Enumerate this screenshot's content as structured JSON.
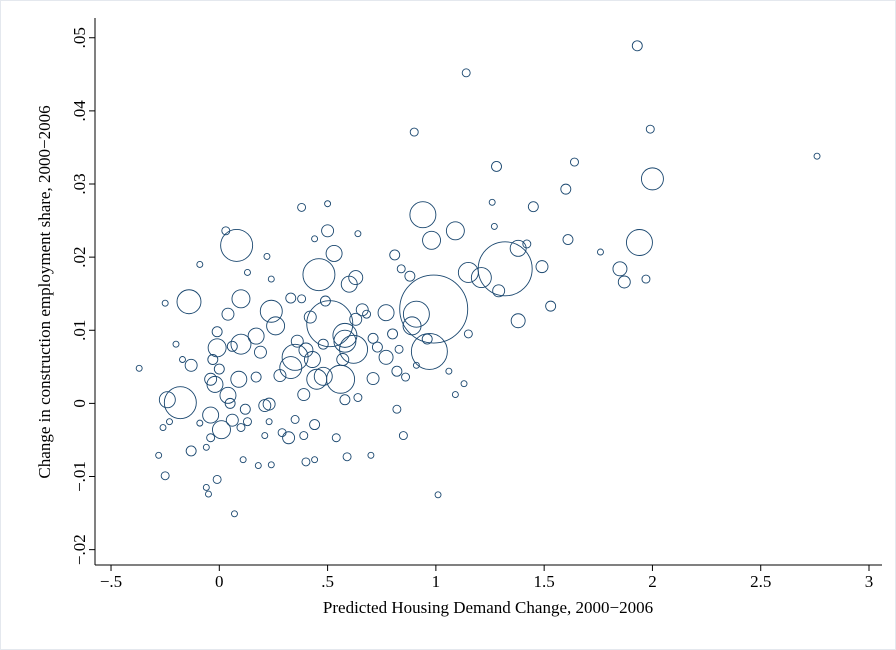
{
  "chart_data": {
    "type": "scatter",
    "x_label": "Predicted Housing Demand Change, 2000−2006",
    "y_label": "Change in construction employment share, 2000−2006",
    "color": "#1a476f",
    "xlim": [
      -0.574,
      3.06
    ],
    "ylim": [
      -0.0221,
      0.0527
    ],
    "xticks": [
      {
        "value": -0.5,
        "label": "−.5"
      },
      0,
      {
        "value": 0.5,
        "label": ".5"
      },
      1,
      {
        "value": 1.5,
        "label": "1.5"
      },
      2,
      {
        "value": 2.5,
        "label": "2.5"
      },
      3
    ],
    "yticks": [
      {
        "value": -0.02,
        "label": "−.02"
      },
      {
        "value": -0.01,
        "label": "−.01"
      },
      0,
      {
        "value": 0.01,
        "label": ".01"
      },
      {
        "value": 0.02,
        "label": ".02"
      },
      {
        "value": 0.03,
        "label": ".03"
      },
      {
        "value": 0.04,
        "label": ".04"
      },
      {
        "value": 0.05,
        "label": ".05"
      }
    ],
    "grid": false,
    "x": [
      1.93,
      1.14,
      2.76,
      1.99,
      0.9,
      2.0,
      1.28,
      1.64,
      1.6,
      1.45,
      0.94,
      0.38,
      0.5,
      1.09,
      1.26,
      1.27,
      0.98,
      1.94,
      1.61,
      1.42,
      1.38,
      0.08,
      0.03,
      0.46,
      1.32,
      1.49,
      1.85,
      1.87,
      1.97,
      1.76,
      0.99,
      0.91,
      0.89,
      0.97,
      1.15,
      1.21,
      1.29,
      1.38,
      1.53,
      -0.14,
      0.1,
      0.24,
      0.51,
      0.58,
      0.62,
      0.53,
      0.63,
      0.6,
      0.77,
      0.66,
      0.42,
      0.1,
      -0.01,
      0.04,
      -0.01,
      -0.18,
      -0.24,
      -0.13,
      -0.04,
      -0.02,
      0.09,
      0.04,
      0.01,
      -0.04,
      0.05,
      0.21,
      0.35,
      0.33,
      0.45,
      0.48,
      0.39,
      0.56,
      0.43,
      0.4,
      0.28,
      0.19,
      0.32,
      0.39,
      0.71,
      0.77,
      0.82,
      1.13,
      1.09,
      0.85,
      1.01,
      0.82,
      0.54,
      0.59,
      0.7,
      0.4,
      0.44,
      0.11,
      0.18,
      0.24,
      0.07,
      -0.05,
      -0.06,
      -0.01,
      -0.25,
      -0.28,
      -0.13,
      -0.37,
      -0.25,
      -0.09,
      -0.17,
      -0.09,
      -0.23,
      0.13,
      0.23,
      0.29,
      0.21,
      0.86,
      0.91,
      1.06,
      0.96,
      1.15,
      0.71,
      0.63,
      0.8,
      0.83,
      0.84,
      0.81,
      0.88,
      0.26,
      0.17,
      0.06,
      0.33,
      0.38,
      0.24,
      0.22,
      0.49,
      0.58,
      0.36,
      0.48,
      0.64,
      0.58,
      0.57,
      0.68,
      0.73,
      0.13,
      0.64,
      0.44,
      0.5,
      0.12,
      0.06,
      0.1,
      0.0,
      -0.03,
      0.17,
      -0.2,
      -0.26,
      -0.06,
      -0.04,
      0.23,
      0.35,
      0.44
    ],
    "values": [
      0.0489,
      0.0452,
      0.0338,
      0.0375,
      0.0371,
      0.0307,
      0.0324,
      0.033,
      0.0293,
      0.0269,
      0.0258,
      0.0268,
      0.0273,
      0.0236,
      0.0275,
      0.0242,
      0.0223,
      0.022,
      0.0224,
      0.0218,
      0.0212,
      0.0216,
      0.0236,
      0.0176,
      0.0184,
      0.0187,
      0.0184,
      0.0166,
      0.017,
      0.0207,
      0.0129,
      0.0122,
      0.0106,
      0.0071,
      0.0179,
      0.0172,
      0.0154,
      0.0113,
      0.0133,
      0.0139,
      0.0143,
      0.0126,
      0.0109,
      0.0093,
      0.0074,
      0.0205,
      0.0172,
      0.0163,
      0.0124,
      0.0128,
      0.0118,
      0.0081,
      0.0076,
      0.0122,
      0.0098,
      0.0001,
      0.0005,
      0.0052,
      0.0033,
      0.0026,
      0.0033,
      0.0011,
      -0.0036,
      -0.0016,
      0.0,
      -0.0003,
      0.0063,
      0.0049,
      0.0033,
      0.0037,
      0.0012,
      0.0033,
      0.006,
      0.0073,
      0.0038,
      0.007,
      -0.0047,
      -0.0044,
      0.0034,
      0.0063,
      0.0044,
      0.0027,
      0.0012,
      -0.0044,
      -0.0125,
      -0.0008,
      -0.0047,
      -0.0073,
      -0.0071,
      -0.008,
      -0.0077,
      -0.0077,
      -0.0085,
      -0.0084,
      -0.0151,
      -0.0124,
      -0.0115,
      -0.0104,
      -0.0099,
      -0.0071,
      -0.0065,
      0.0048,
      0.0137,
      0.019,
      0.006,
      -0.0027,
      -0.0025,
      -0.0025,
      -0.0025,
      -0.004,
      -0.0044,
      0.0036,
      0.0052,
      0.0044,
      0.0088,
      0.0095,
      0.0089,
      0.0115,
      0.0095,
      0.0074,
      0.0184,
      0.0203,
      0.0174,
      0.0106,
      0.0092,
      0.0078,
      0.0144,
      0.0143,
      0.017,
      0.0201,
      0.014,
      0.0085,
      0.0085,
      0.0081,
      0.0008,
      0.0005,
      0.006,
      0.0122,
      0.0077,
      0.0179,
      0.0232,
      0.0225,
      0.0236,
      -0.0008,
      -0.0023,
      -0.0033,
      0.0047,
      0.006,
      0.0036,
      0.0081,
      -0.0033,
      -0.006,
      -0.0047,
      -0.0001,
      -0.0022,
      -0.0029
    ],
    "sizes": [
      25,
      16,
      9,
      16,
      16,
      121,
      25,
      16,
      25,
      25,
      169,
      16,
      9,
      81,
      9,
      9,
      81,
      169,
      25,
      16,
      64,
      256,
      16,
      256,
      729,
      36,
      49,
      36,
      16,
      9,
      1156,
      169,
      81,
      324,
      100,
      100,
      36,
      49,
      25,
      144,
      81,
      121,
      529,
      144,
      196,
      64,
      49,
      64,
      64,
      36,
      36,
      100,
      81,
      36,
      25,
      256,
      64,
      36,
      36,
      64,
      64,
      64,
      81,
      64,
      25,
      36,
      169,
      121,
      100,
      81,
      36,
      196,
      64,
      49,
      36,
      36,
      36,
      16,
      36,
      49,
      25,
      9,
      9,
      16,
      9,
      16,
      16,
      16,
      9,
      16,
      9,
      9,
      9,
      9,
      9,
      9,
      9,
      16,
      16,
      9,
      25,
      9,
      9,
      9,
      9,
      9,
      9,
      16,
      9,
      16,
      9,
      16,
      9,
      9,
      25,
      16,
      25,
      36,
      25,
      16,
      16,
      25,
      25,
      81,
      64,
      25,
      25,
      16,
      9,
      9,
      25,
      121,
      36,
      25,
      16,
      25,
      36,
      16,
      25,
      9,
      9,
      9,
      36,
      25,
      36,
      16,
      25,
      25,
      25,
      9,
      9,
      9,
      16,
      36,
      16,
      25
    ]
  }
}
